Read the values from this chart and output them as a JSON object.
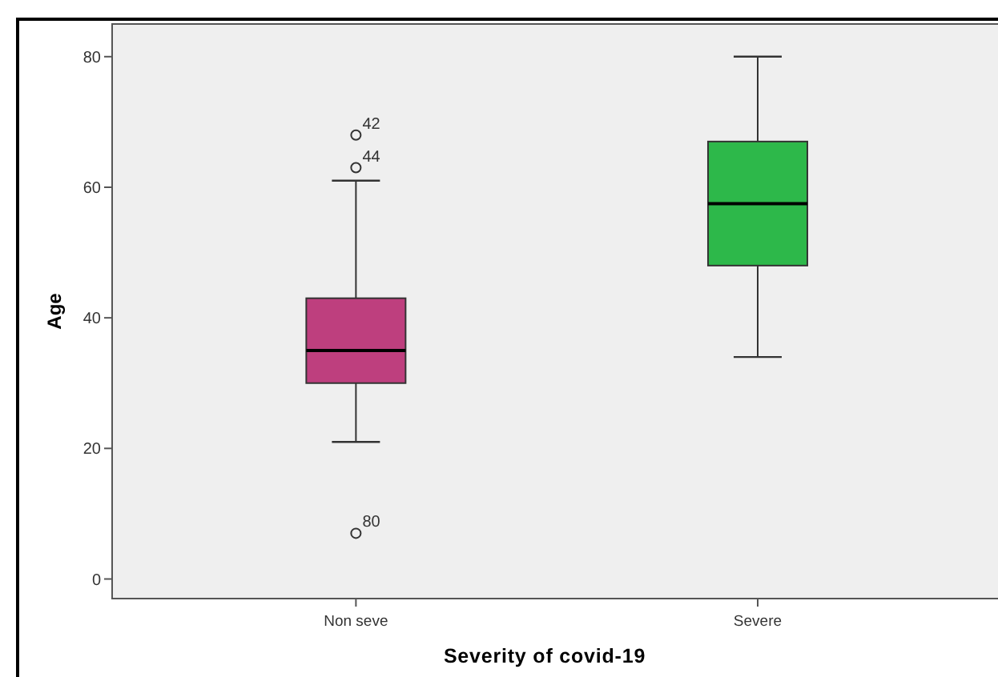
{
  "chart_data": {
    "type": "box",
    "xlabel": "Severity of covid-19",
    "ylabel": "Age",
    "categories": [
      "Non seve",
      "Severe"
    ],
    "colors": [
      "#be3f7e",
      "#2db84a"
    ],
    "boxes": [
      {
        "low": 21,
        "q1": 30,
        "median": 35,
        "q3": 43,
        "high": 61
      },
      {
        "low": 34,
        "q1": 48,
        "median": 57.5,
        "q3": 67,
        "high": 80
      }
    ],
    "series": [
      {
        "type": "scatter",
        "x": [
          "Non seve",
          "Non seve",
          "Non seve"
        ],
        "values": [
          68,
          63,
          7
        ],
        "color": "#333333",
        "marker": "circle"
      }
    ],
    "ylim": [
      -3,
      85
    ],
    "yticks": [
      0,
      20,
      40,
      60,
      80
    ],
    "grid": false,
    "annotations": [
      {
        "text": "42",
        "x": "Non seve",
        "y": 68
      },
      {
        "text": "44",
        "x": "Non seve",
        "y": 63
      },
      {
        "text": "80",
        "x": "Non seve",
        "y": 7
      }
    ]
  }
}
